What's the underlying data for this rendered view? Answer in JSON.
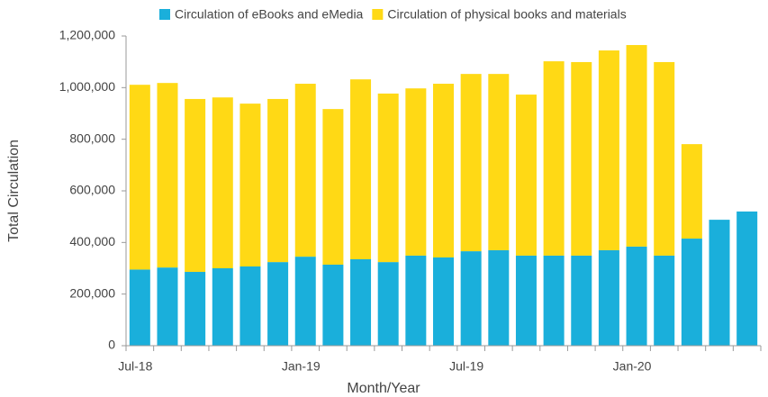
{
  "chart_data": {
    "type": "stacked_bar",
    "categories": [
      "Jul-18",
      null,
      null,
      null,
      null,
      null,
      "Jan-19",
      null,
      null,
      null,
      null,
      null,
      "Jul-19",
      null,
      null,
      null,
      null,
      null,
      "Jan-20",
      null,
      null,
      null,
      null
    ],
    "series": [
      {
        "name": "Circulation of eBooks and eMedia",
        "color": "#1aafdb",
        "values": [
          295000,
          303000,
          286000,
          300000,
          307000,
          324000,
          345000,
          314000,
          335000,
          324000,
          349000,
          342000,
          366000,
          370000,
          349000,
          349000,
          349000,
          370000,
          384000,
          349000,
          415000,
          488000,
          520000
        ]
      },
      {
        "name": "Circulation of physical books and materials",
        "color": "#ffd915",
        "values": [
          716000,
          715000,
          670000,
          662000,
          631000,
          632000,
          670000,
          603000,
          697000,
          653000,
          648000,
          673000,
          687000,
          683000,
          624000,
          753000,
          750000,
          774000,
          781000,
          750000,
          366000,
          0,
          0
        ]
      }
    ],
    "ylim": [
      0,
      1200000
    ],
    "yticks": [
      0,
      {
        "value": 200000,
        "label": "200,000"
      },
      {
        "value": 400000,
        "label": "400,000"
      },
      {
        "value": 600000,
        "label": "600,000"
      },
      {
        "value": 800000,
        "label": "800,000"
      },
      {
        "value": 1000000,
        "label": "1,000,000"
      },
      {
        "value": 1200000,
        "label": "1,200,000"
      }
    ],
    "xlabel": "Month/Year",
    "ylabel": "Total Circulation",
    "grid": false
  }
}
